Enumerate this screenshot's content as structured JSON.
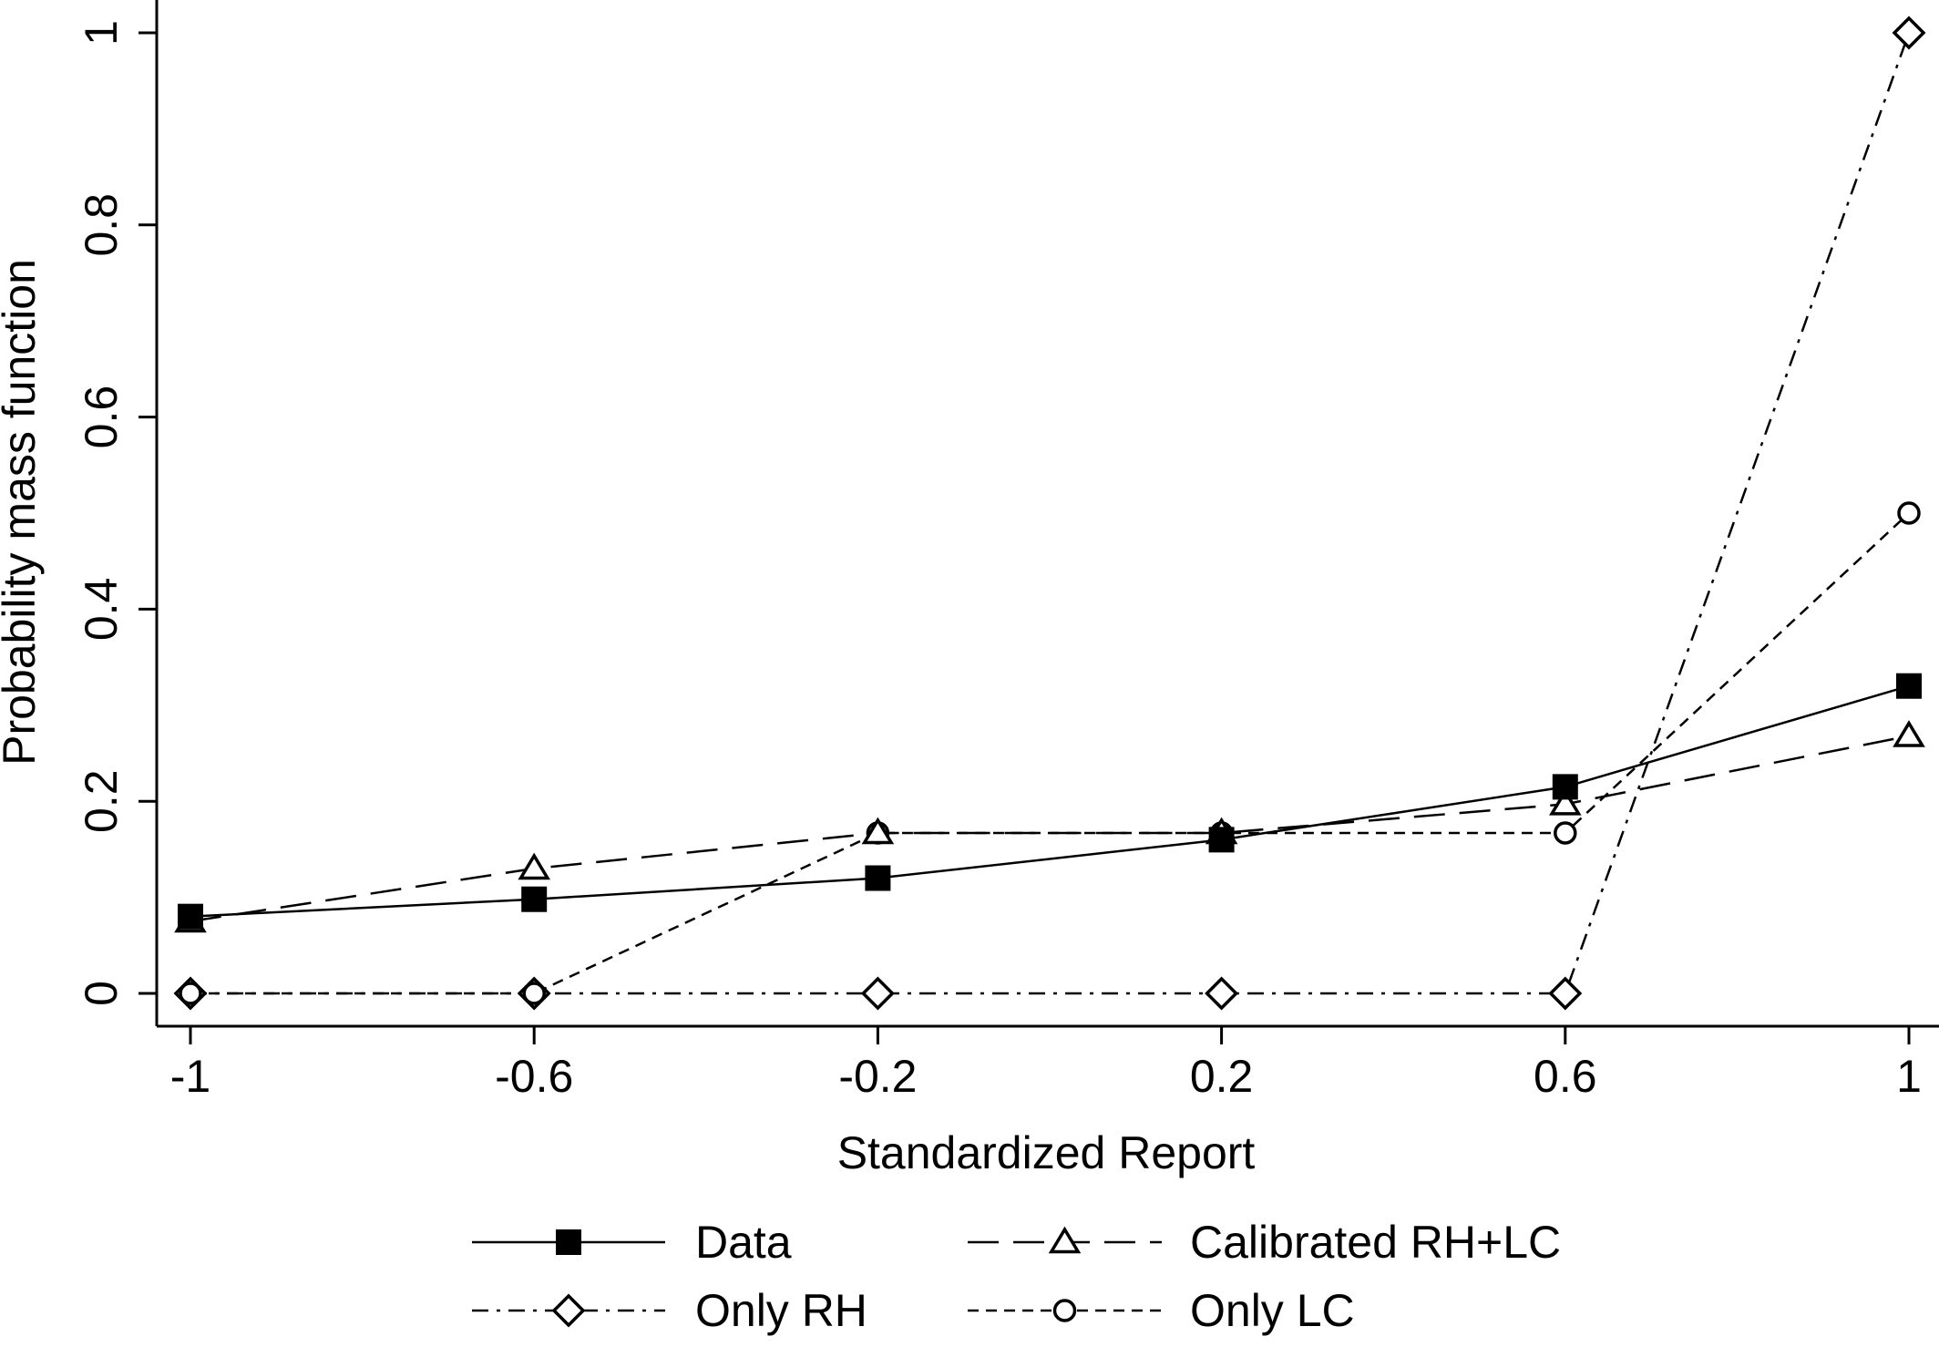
{
  "chart_data": {
    "type": "line",
    "xlabel": "Standardized Report",
    "ylabel": "Probability mass function",
    "x": [
      -1,
      -0.6,
      -0.2,
      0.2,
      0.6,
      1
    ],
    "xticks": [
      "-1",
      "-0.6",
      "-0.2",
      "0.2",
      "0.6",
      "1"
    ],
    "yticks": [
      "0",
      "0.2",
      "0.4",
      "0.6",
      "0.8",
      "1"
    ],
    "xlim": [
      -1,
      1
    ],
    "ylim": [
      0,
      1
    ],
    "grid": false,
    "legend_position": "bottom",
    "series": [
      {
        "name": "Data",
        "values": [
          0.08,
          0.098,
          0.12,
          0.16,
          0.215,
          0.32
        ],
        "line_style": "solid",
        "marker": "filled-square",
        "color": "#000000"
      },
      {
        "name": "Calibrated RH+LC",
        "values": [
          0.075,
          0.13,
          0.167,
          0.167,
          0.197,
          0.268
        ],
        "line_style": "long-dash",
        "marker": "open-triangle",
        "color": "#000000"
      },
      {
        "name": "Only RH",
        "values": [
          0,
          0,
          0,
          0,
          0,
          1
        ],
        "line_style": "dash-dot",
        "marker": "open-diamond",
        "color": "#000000"
      },
      {
        "name": "Only LC",
        "values": [
          0,
          0,
          0.167,
          0.167,
          0.167,
          0.5
        ],
        "line_style": "short-dash",
        "marker": "open-circle",
        "color": "#000000"
      }
    ]
  }
}
